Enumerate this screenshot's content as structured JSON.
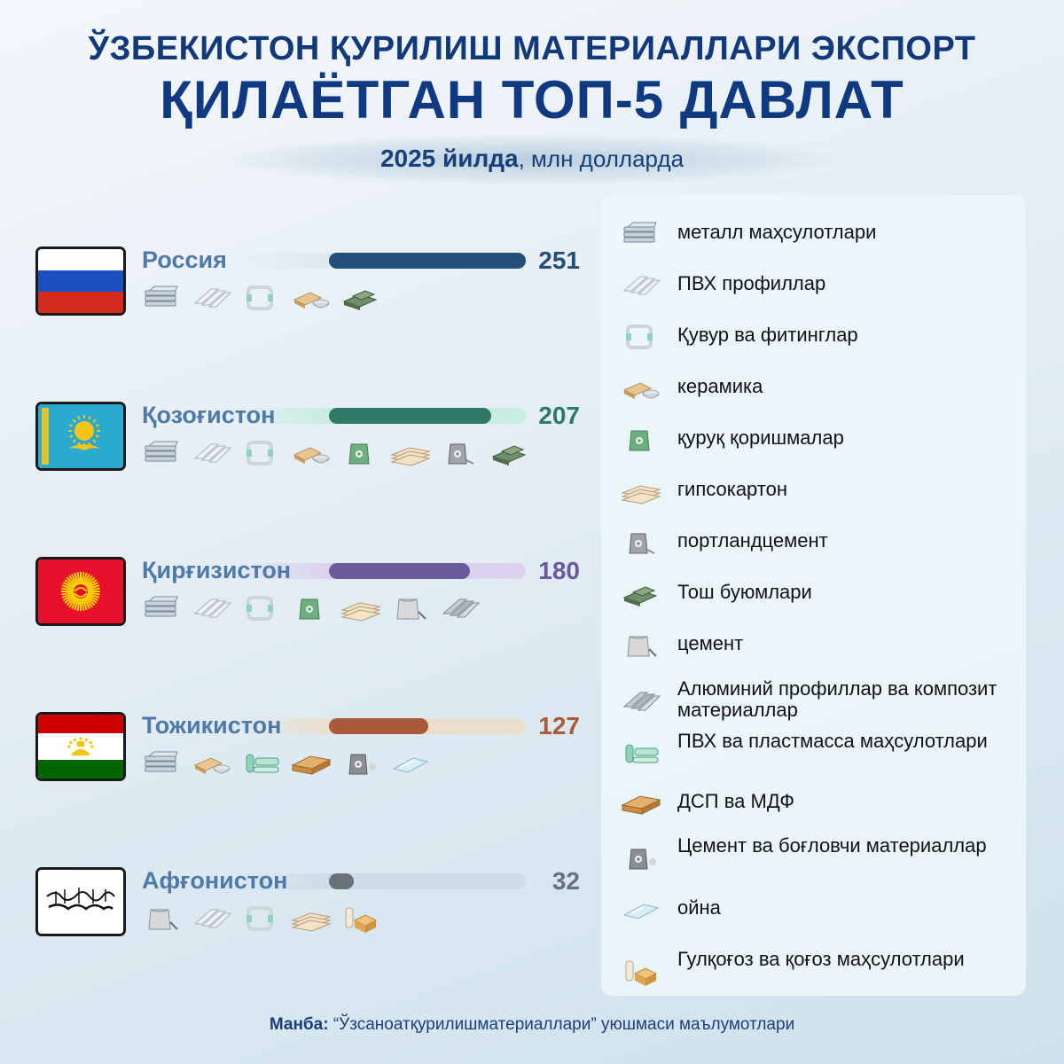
{
  "title": {
    "line1": "ЎЗБЕКИСТОН ҚУРИЛИШ МАТЕРИАЛЛАРИ ЭКСПОРТ",
    "line2": "ҚИЛАЁТГАН ТОП-5 ДАВЛАТ",
    "subtitle_bold": "2025 йилда",
    "subtitle_rest": ", млн долларда"
  },
  "source": {
    "label": "Манба:",
    "text": " “Ўзсаноатқурилишматериаллари” уюшмаси маълумотлари"
  },
  "chart_data": {
    "type": "bar",
    "title": "ЎЗБЕКИСТОН ҚУРИЛИШ МАТЕРИАЛЛАРИ ЭКСПОРТ ҚИЛАЁТГАН ТОП-5 ДАВЛАТ",
    "subtitle": "2025 йилда, млн долларда",
    "categories": [
      "Россия",
      "Қозоғистон",
      "Қирғизистон",
      "Тожикистон",
      "Афғонистон"
    ],
    "values": [
      251,
      207,
      180,
      127,
      32
    ],
    "ylim": [
      0,
      251
    ],
    "series": [
      {
        "country": "Россия",
        "value": 251,
        "color": "#234f7a",
        "track": "#dde8f0",
        "flag": "russia",
        "products": [
          "metal",
          "pvc-profile",
          "pipes",
          "ceramics",
          "stone"
        ]
      },
      {
        "country": "Қозоғистон",
        "value": 207,
        "color": "#2e7a66",
        "track": "#c8ecdf",
        "flag": "kazakhstan",
        "products": [
          "metal",
          "pvc-profile",
          "pipes",
          "ceramics",
          "dry-mix",
          "drywall",
          "portland-cement",
          "stone"
        ]
      },
      {
        "country": "Қирғизистон",
        "value": 180,
        "color": "#6b5a9c",
        "track": "#dcd0f0",
        "flag": "kyrgyzstan",
        "products": [
          "metal",
          "pvc-profile",
          "pipes",
          "dry-mix",
          "drywall",
          "cement",
          "aluminium"
        ]
      },
      {
        "country": "Тожикистон",
        "value": 127,
        "color": "#a85a3a",
        "track": "#eadfcd",
        "flag": "tajikistan",
        "products": [
          "metal",
          "ceramics",
          "plastic",
          "chipboard",
          "binders",
          "glass"
        ]
      },
      {
        "country": "Афғонистон",
        "value": 32,
        "color": "#6a717a",
        "track": "#cfdce6",
        "flag": "afghanistan",
        "products": [
          "cement",
          "pvc-profile",
          "pipes",
          "drywall",
          "wallpaper"
        ]
      }
    ]
  },
  "legend": [
    {
      "icon": "metal",
      "label": "металл маҳсулотлари"
    },
    {
      "icon": "pvc-profile",
      "label": "ПВХ профиллар"
    },
    {
      "icon": "pipes",
      "label": "Қувур ва фитинглар"
    },
    {
      "icon": "ceramics",
      "label": "керамика"
    },
    {
      "icon": "dry-mix",
      "label": "қуруқ қоришмалар"
    },
    {
      "icon": "drywall",
      "label": "гипсокартон"
    },
    {
      "icon": "portland-cement",
      "label": "портландцемент"
    },
    {
      "icon": "stone",
      "label": "Тош буюмлари"
    },
    {
      "icon": "cement",
      "label": "цемент"
    },
    {
      "icon": "aluminium",
      "label": "Алюминий профиллар ва композит материаллар"
    },
    {
      "icon": "plastic",
      "label": "ПВХ ва пластмасса маҳсулотлари"
    },
    {
      "icon": "chipboard",
      "label": "ДСП ва МДФ"
    },
    {
      "icon": "binders",
      "label": "Цемент ва боғловчи материаллар"
    },
    {
      "icon": "glass",
      "label": "ойна"
    },
    {
      "icon": "wallpaper",
      "label": "Гулқоғоз ва қоғоз маҳсулотлари"
    }
  ]
}
